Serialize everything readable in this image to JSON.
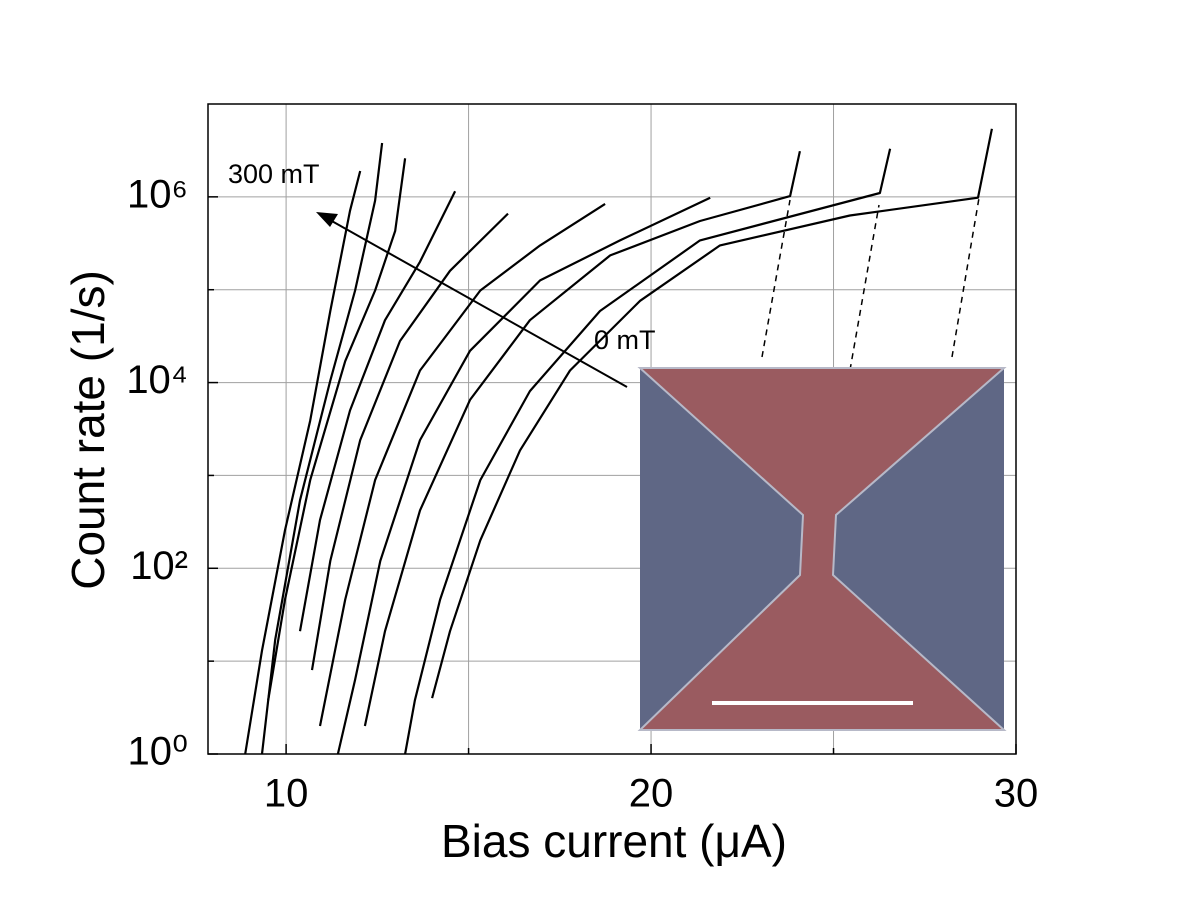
{
  "chart_data": {
    "type": "line",
    "x_label": "Bias current (μA)",
    "y_label": "Count rate (1/s)",
    "annotations": [
      {
        "text": "300 mT"
      },
      {
        "text": "0 mT"
      }
    ],
    "xlim": [
      7.86,
      30
    ],
    "xticks": [
      10,
      20,
      30
    ],
    "x_grid_extra": [
      15,
      25
    ],
    "ylim": [
      1,
      10000000
    ],
    "log_y": true,
    "yticks": [
      {
        "value": 1,
        "label": "10⁰"
      },
      {
        "value": 100,
        "label": "10²"
      },
      {
        "value": 10000,
        "label": "10⁴"
      },
      {
        "value": 1000000,
        "label": "10⁶"
      }
    ],
    "y_grid_extra": [
      10,
      1000,
      100000
    ],
    "grid": true,
    "series": [
      {
        "color": "#000000",
        "x": [
          8.88,
          9.34,
          9.97,
          10.66,
          11.21,
          11.75,
          12.03
        ],
        "values": [
          1,
          13,
          257,
          3890,
          59000,
          708000,
          1900000
        ]
      },
      {
        "color": "#000000",
        "x": [
          9.34,
          9.7,
          10.38,
          11.21,
          11.89,
          12.44,
          12.63
        ],
        "values": [
          1,
          17,
          540,
          10500,
          98000,
          912000,
          3800000
        ]
      },
      {
        "color": "#000000",
        "x": [
          9.51,
          9.97,
          10.66,
          11.62,
          12.44,
          12.99,
          13.26
        ],
        "values": [
          3.8,
          46,
          890,
          17000,
          98000,
          430000,
          2600000
        ]
      },
      {
        "color": "#000000",
        "x": [
          10.38,
          10.93,
          11.75,
          12.71,
          13.67,
          14.63
        ],
        "values": [
          21,
          330,
          5000,
          47000,
          200000,
          1150000
        ]
      },
      {
        "color": "#000000",
        "x": [
          10.71,
          11.21,
          12.03,
          13.12,
          14.49,
          16.08
        ],
        "values": [
          8,
          120,
          2400,
          28000,
          160000,
          660000
        ]
      },
      {
        "color": "#000000",
        "x": [
          10.93,
          11.62,
          12.44,
          13.67,
          15.32,
          16.96,
          18.74
        ],
        "values": [
          2,
          46,
          890,
          13500,
          98000,
          300000,
          840000
        ]
      },
      {
        "color": "#000000",
        "x": [
          11.42,
          11.89,
          12.58,
          13.67,
          15.04,
          16.96,
          19.15,
          21.62
        ],
        "values": [
          1,
          6.3,
          120,
          2400,
          22000,
          126000,
          340000,
          980000
        ]
      },
      {
        "color": "#000000",
        "x": [
          12.16,
          12.71,
          13.67,
          15.04,
          16.68,
          18.88,
          21.34,
          23.81,
          24.08
        ],
        "values": [
          2,
          21,
          420,
          6500,
          47000,
          234000,
          550000,
          1020000,
          3100000
        ]
      },
      {
        "color": "#000000",
        "x": [
          13.26,
          13.53,
          14.22,
          15.32,
          16.68,
          18.6,
          21.34,
          26.27,
          26.55
        ],
        "values": [
          1,
          3.8,
          46,
          890,
          8100,
          59000,
          340000,
          1100000,
          3300000
        ]
      },
      {
        "color": "#000000",
        "x": [
          14.0,
          14.49,
          15.32,
          16.41,
          17.78,
          19.7,
          21.89,
          25.45,
          28.96,
          29.34
        ],
        "values": [
          4,
          21,
          200,
          1860,
          13500,
          76000,
          300000,
          630000,
          980000,
          5400000
        ]
      }
    ]
  }
}
